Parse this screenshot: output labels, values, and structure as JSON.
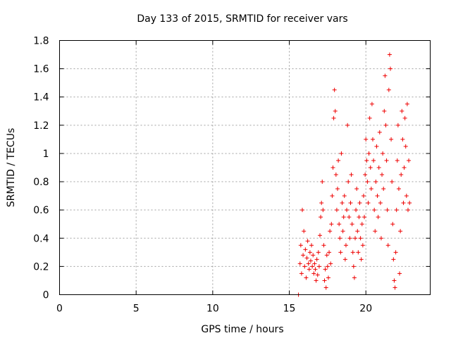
{
  "chart_data": {
    "type": "scatter",
    "title": "Day 133 of 2015, SRMTID for receiver vars",
    "xlabel": "GPS time / hours",
    "ylabel": "SRMTID / TECUs",
    "xlim": [
      0,
      24.2
    ],
    "ylim": [
      0,
      1.8
    ],
    "xticks": [
      0,
      5,
      10,
      15,
      20
    ],
    "yticks": [
      0,
      0.2,
      0.4,
      0.6,
      0.8,
      1,
      1.2,
      1.4,
      1.6,
      1.8
    ],
    "xtick_labels": [
      "0",
      "5",
      "10",
      "15",
      "20"
    ],
    "ytick_labels": [
      "0",
      "0.2",
      "0.4",
      "0.6",
      "0.8",
      "1",
      "1.2",
      "1.4",
      "1.6",
      "1.8"
    ],
    "grid": true,
    "marker": "plus",
    "color": "#ee0000",
    "series": [
      {
        "name": "SRMTID",
        "points": [
          [
            15.6,
            0.0
          ],
          [
            15.7,
            0.22
          ],
          [
            15.75,
            0.35
          ],
          [
            15.8,
            0.15
          ],
          [
            15.85,
            0.6
          ],
          [
            15.9,
            0.28
          ],
          [
            15.95,
            0.45
          ],
          [
            16.0,
            0.2
          ],
          [
            16.05,
            0.32
          ],
          [
            16.1,
            0.12
          ],
          [
            16.15,
            0.26
          ],
          [
            16.2,
            0.38
          ],
          [
            16.25,
            0.22
          ],
          [
            16.3,
            0.18
          ],
          [
            16.35,
            0.3
          ],
          [
            16.4,
            0.24
          ],
          [
            16.45,
            0.35
          ],
          [
            16.5,
            0.2
          ],
          [
            16.55,
            0.28
          ],
          [
            16.6,
            0.15
          ],
          [
            16.65,
            0.22
          ],
          [
            16.7,
            0.18
          ],
          [
            16.75,
            0.1
          ],
          [
            16.8,
            0.25
          ],
          [
            16.85,
            0.14
          ],
          [
            16.9,
            0.3
          ],
          [
            16.95,
            0.2
          ],
          [
            17.0,
            0.42
          ],
          [
            17.05,
            0.55
          ],
          [
            17.1,
            0.65
          ],
          [
            17.15,
            0.8
          ],
          [
            17.2,
            0.6
          ],
          [
            17.25,
            0.35
          ],
          [
            17.3,
            0.1
          ],
          [
            17.35,
            0.18
          ],
          [
            17.4,
            0.05
          ],
          [
            17.45,
            0.28
          ],
          [
            17.5,
            0.2
          ],
          [
            17.55,
            0.12
          ],
          [
            17.6,
            0.3
          ],
          [
            17.65,
            0.45
          ],
          [
            17.7,
            0.22
          ],
          [
            17.75,
            0.5
          ],
          [
            17.8,
            0.7
          ],
          [
            17.85,
            0.9
          ],
          [
            17.9,
            1.25
          ],
          [
            17.95,
            1.45
          ],
          [
            18.0,
            1.3
          ],
          [
            18.05,
            0.85
          ],
          [
            18.1,
            0.6
          ],
          [
            18.15,
            0.75
          ],
          [
            18.2,
            0.95
          ],
          [
            18.25,
            0.5
          ],
          [
            18.3,
            0.4
          ],
          [
            18.35,
            0.3
          ],
          [
            18.4,
            1.0
          ],
          [
            18.45,
            0.65
          ],
          [
            18.5,
            0.45
          ],
          [
            18.55,
            0.55
          ],
          [
            18.6,
            0.7
          ],
          [
            18.65,
            0.25
          ],
          [
            18.7,
            0.35
          ],
          [
            18.75,
            0.6
          ],
          [
            18.8,
            1.2
          ],
          [
            18.85,
            0.8
          ],
          [
            18.9,
            0.55
          ],
          [
            18.95,
            0.4
          ],
          [
            19.0,
            0.65
          ],
          [
            19.05,
            0.85
          ],
          [
            19.1,
            0.5
          ],
          [
            19.15,
            0.3
          ],
          [
            19.2,
            0.2
          ],
          [
            19.25,
            0.12
          ],
          [
            19.3,
            0.4
          ],
          [
            19.35,
            0.6
          ],
          [
            19.4,
            0.75
          ],
          [
            19.45,
            0.45
          ],
          [
            19.5,
            0.3
          ],
          [
            19.55,
            0.55
          ],
          [
            19.6,
            0.65
          ],
          [
            19.65,
            0.4
          ],
          [
            19.7,
            0.25
          ],
          [
            19.75,
            0.5
          ],
          [
            19.8,
            0.35
          ],
          [
            19.85,
            0.7
          ],
          [
            19.9,
            0.55
          ],
          [
            19.95,
            0.85
          ],
          [
            20.0,
            1.1
          ],
          [
            20.05,
            0.95
          ],
          [
            20.1,
            0.8
          ],
          [
            20.15,
            0.65
          ],
          [
            20.2,
            1.0
          ],
          [
            20.25,
            1.25
          ],
          [
            20.3,
            0.9
          ],
          [
            20.35,
            0.75
          ],
          [
            20.4,
            1.35
          ],
          [
            20.45,
            1.1
          ],
          [
            20.5,
            0.95
          ],
          [
            20.55,
            0.6
          ],
          [
            20.6,
            0.45
          ],
          [
            20.65,
            0.8
          ],
          [
            20.7,
            1.05
          ],
          [
            20.75,
            0.7
          ],
          [
            20.8,
            0.55
          ],
          [
            20.85,
            0.9
          ],
          [
            20.9,
            1.15
          ],
          [
            20.95,
            0.65
          ],
          [
            21.0,
            0.4
          ],
          [
            21.05,
            0.85
          ],
          [
            21.1,
            1.0
          ],
          [
            21.15,
            0.75
          ],
          [
            21.2,
            1.3
          ],
          [
            21.25,
            1.55
          ],
          [
            21.3,
            1.2
          ],
          [
            21.35,
            0.95
          ],
          [
            21.4,
            0.6
          ],
          [
            21.45,
            0.35
          ],
          [
            21.5,
            1.45
          ],
          [
            21.55,
            1.7
          ],
          [
            21.6,
            1.6
          ],
          [
            21.65,
            1.1
          ],
          [
            21.7,
            0.8
          ],
          [
            21.75,
            0.5
          ],
          [
            21.8,
            0.25
          ],
          [
            21.85,
            0.1
          ],
          [
            21.9,
            0.05
          ],
          [
            21.95,
            0.3
          ],
          [
            22.0,
            0.6
          ],
          [
            22.05,
            0.95
          ],
          [
            22.1,
            1.2
          ],
          [
            22.15,
            0.75
          ],
          [
            22.2,
            0.15
          ],
          [
            22.25,
            0.45
          ],
          [
            22.3,
            0.85
          ],
          [
            22.35,
            1.3
          ],
          [
            22.4,
            1.1
          ],
          [
            22.45,
            0.65
          ],
          [
            22.5,
            0.9
          ],
          [
            22.55,
            1.25
          ],
          [
            22.6,
            1.05
          ],
          [
            22.65,
            0.7
          ],
          [
            22.7,
            1.35
          ],
          [
            22.75,
            0.6
          ],
          [
            22.8,
            0.95
          ],
          [
            22.85,
            0.65
          ]
        ]
      }
    ]
  }
}
